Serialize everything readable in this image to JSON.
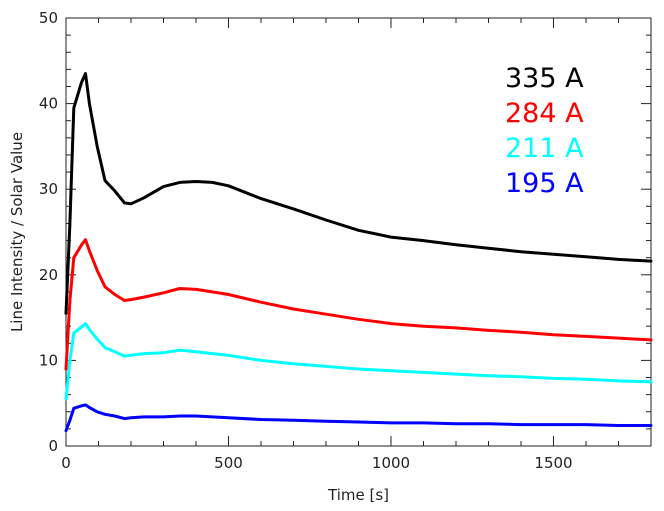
{
  "chart_data": {
    "type": "line",
    "title": "",
    "xlabel": "Time [s]",
    "ylabel": "Line Intensity / Solar Value",
    "xlim": [
      0,
      1800
    ],
    "ylim": [
      0,
      50
    ],
    "xticks": [
      0,
      500,
      1000,
      1500
    ],
    "yticks": [
      0,
      10,
      20,
      30,
      40,
      50
    ],
    "grid": false,
    "legend_placement": "top-right",
    "series": [
      {
        "name": "335 A",
        "color": "#000000",
        "x": [
          0,
          12,
          24,
          48,
          60,
          72,
          96,
          120,
          150,
          180,
          200,
          240,
          300,
          350,
          400,
          450,
          500,
          600,
          700,
          800,
          900,
          1000,
          1100,
          1200,
          1300,
          1400,
          1500,
          1600,
          1700,
          1800
        ],
        "y": [
          15.5,
          26,
          39.5,
          42.5,
          43.5,
          40,
          35,
          31,
          29.8,
          28.4,
          28.3,
          29.0,
          30.3,
          30.8,
          30.9,
          30.8,
          30.4,
          28.9,
          27.7,
          26.4,
          25.2,
          24.4,
          24.0,
          23.5,
          23.1,
          22.7,
          22.4,
          22.1,
          21.8,
          21.6
        ]
      },
      {
        "name": "284 A",
        "color": "#ff0000",
        "x": [
          0,
          12,
          24,
          48,
          60,
          72,
          96,
          120,
          150,
          180,
          200,
          240,
          300,
          350,
          400,
          450,
          500,
          600,
          700,
          800,
          900,
          1000,
          1100,
          1200,
          1300,
          1400,
          1500,
          1600,
          1700,
          1800
        ],
        "y": [
          9,
          17,
          22,
          23.5,
          24.1,
          22.8,
          20.5,
          18.6,
          17.7,
          17.0,
          17.1,
          17.4,
          17.9,
          18.4,
          18.3,
          18.0,
          17.7,
          16.8,
          16.0,
          15.4,
          14.8,
          14.3,
          14.0,
          13.8,
          13.5,
          13.3,
          13.0,
          12.8,
          12.6,
          12.4
        ]
      },
      {
        "name": "211 A",
        "color": "#00ffff",
        "x": [
          0,
          12,
          24,
          48,
          60,
          72,
          96,
          120,
          150,
          180,
          200,
          240,
          300,
          350,
          400,
          450,
          500,
          600,
          700,
          800,
          900,
          1000,
          1100,
          1200,
          1300,
          1400,
          1500,
          1600,
          1700,
          1800
        ],
        "y": [
          5.5,
          10,
          13.2,
          13.9,
          14.3,
          13.6,
          12.5,
          11.5,
          11.0,
          10.5,
          10.6,
          10.8,
          10.9,
          11.2,
          11.0,
          10.8,
          10.6,
          10.0,
          9.6,
          9.3,
          9.0,
          8.8,
          8.6,
          8.4,
          8.2,
          8.1,
          7.9,
          7.8,
          7.6,
          7.5
        ]
      },
      {
        "name": "195 A",
        "color": "#0000ff",
        "x": [
          0,
          12,
          24,
          48,
          60,
          72,
          96,
          120,
          150,
          180,
          200,
          240,
          300,
          350,
          400,
          450,
          500,
          600,
          700,
          800,
          900,
          1000,
          1100,
          1200,
          1300,
          1400,
          1500,
          1600,
          1700,
          1800
        ],
        "y": [
          1.8,
          3.0,
          4.4,
          4.7,
          4.8,
          4.5,
          4.0,
          3.7,
          3.5,
          3.2,
          3.3,
          3.4,
          3.4,
          3.5,
          3.5,
          3.4,
          3.3,
          3.1,
          3.0,
          2.9,
          2.8,
          2.7,
          2.7,
          2.6,
          2.6,
          2.5,
          2.5,
          2.5,
          2.4,
          2.4
        ]
      }
    ]
  }
}
